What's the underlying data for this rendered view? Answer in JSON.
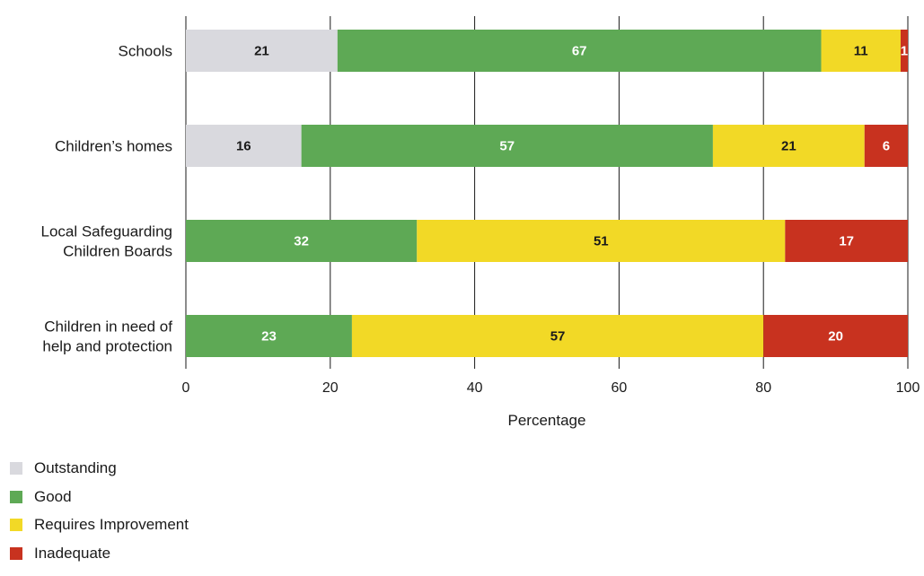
{
  "chart_data": {
    "type": "bar",
    "orientation": "horizontal",
    "stacked": true,
    "categories": [
      [
        "Schools"
      ],
      [
        "Children’s homes"
      ],
      [
        "Local Safeguarding",
        "Children Boards"
      ],
      [
        "Children in need of",
        "help and protection"
      ]
    ],
    "series": [
      {
        "name": "Outstanding",
        "color": "#d9d9de",
        "label_color": "#1a1a1a",
        "values": [
          21,
          16,
          0,
          0
        ]
      },
      {
        "name": "Good",
        "color": "#5ea955",
        "label_color": "#ffffff",
        "values": [
          67,
          57,
          32,
          23
        ]
      },
      {
        "name": "Requires Improvement",
        "color": "#f2d926",
        "label_color": "#1a1a1a",
        "values": [
          11,
          21,
          51,
          57
        ]
      },
      {
        "name": "Inadequate",
        "color": "#c8321f",
        "label_color": "#ffffff",
        "values": [
          1,
          6,
          17,
          20
        ]
      }
    ],
    "xlabel": "Percentage",
    "xlim": [
      0,
      100
    ],
    "xticks": [
      0,
      20,
      40,
      60,
      80,
      100
    ],
    "grid": true,
    "legend_position": "bottom-left"
  }
}
